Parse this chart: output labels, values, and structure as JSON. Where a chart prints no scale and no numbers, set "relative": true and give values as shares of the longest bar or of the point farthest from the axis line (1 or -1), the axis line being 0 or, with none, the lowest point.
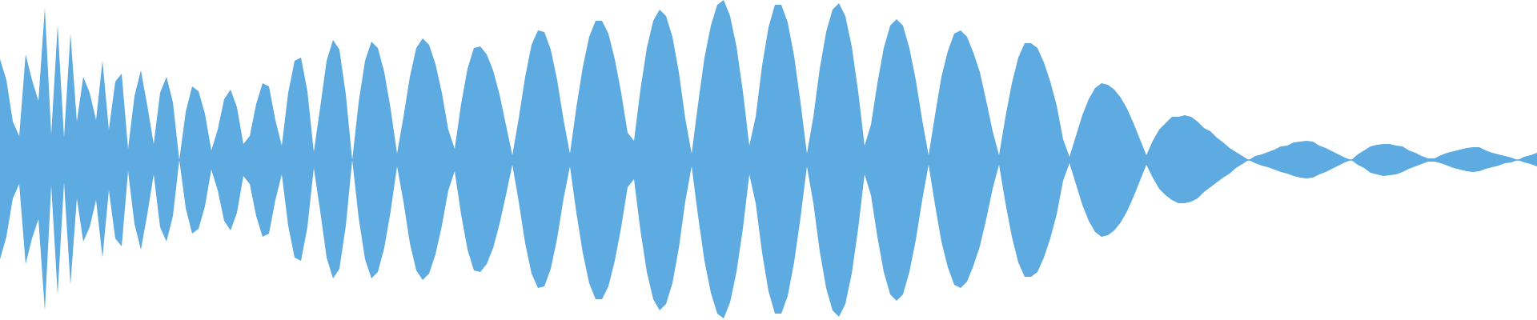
{
  "chart_data": {
    "type": "area",
    "relative": true,
    "ref_lines": [
      {
        "axis": "y",
        "value": 0,
        "color": "#5dabe0"
      }
    ],
    "categories": [
      null,
      null,
      null,
      null,
      null,
      null,
      null,
      null,
      null,
      null,
      null,
      null,
      null,
      null,
      null,
      null,
      null,
      null,
      null,
      null,
      null,
      null,
      null,
      null,
      null,
      null,
      null,
      null,
      null,
      null,
      null,
      null,
      null,
      null,
      null,
      null,
      null,
      null,
      null,
      null,
      null,
      null,
      null,
      null,
      null,
      null,
      null,
      null,
      null,
      null,
      null,
      null,
      null,
      null,
      null,
      null,
      null,
      null,
      null,
      null,
      null,
      null,
      null,
      null,
      null,
      null,
      null,
      null,
      null,
      null,
      null,
      null,
      null,
      null,
      null,
      null,
      null,
      null,
      null,
      null,
      null,
      null,
      null,
      null,
      null,
      null,
      null,
      null,
      null,
      null,
      null,
      null,
      null,
      null,
      null,
      null,
      null,
      null,
      null,
      null,
      null,
      null,
      null,
      null,
      null,
      null,
      null,
      null,
      null,
      null,
      null,
      null,
      null,
      null,
      null,
      null,
      null,
      null,
      null,
      null,
      null,
      null,
      null,
      null,
      null,
      null,
      null,
      null,
      null,
      null,
      null,
      null,
      null,
      null,
      null,
      null,
      null,
      null,
      null,
      null,
      null,
      null,
      null,
      null,
      null,
      null,
      null,
      null,
      null,
      null,
      null,
      null,
      null,
      null,
      null,
      null,
      null,
      null,
      null,
      null,
      null,
      null,
      null,
      null,
      null,
      null,
      null,
      null,
      null,
      null,
      null,
      null,
      null,
      null,
      null,
      null,
      null,
      null,
      null,
      null,
      null,
      null,
      null,
      null,
      null,
      null,
      null,
      null,
      null,
      null,
      null,
      null,
      null,
      null,
      null,
      null,
      null,
      null,
      null,
      null,
      null,
      null,
      null,
      null,
      null,
      null,
      null,
      null,
      null,
      null,
      null,
      null,
      null,
      null,
      null,
      null,
      null,
      null,
      null,
      null,
      null,
      null,
      null,
      null,
      null,
      null,
      null,
      null,
      null,
      null,
      null,
      null,
      null,
      null,
      null,
      null,
      null,
      null,
      null,
      null,
      null
    ],
    "series": [
      {
        "color": "#5dabe0",
        "values": [
          0.63,
          0.5,
          0.24,
          0.15,
          0.66,
          0.5,
          0.37,
          0.95,
          0.16,
          0.84,
          0.14,
          0.79,
          0.24,
          0.52,
          0.42,
          0.25,
          0.62,
          0.19,
          0.49,
          0.54,
          0.07,
          0.4,
          0.56,
          0.34,
          0.1,
          0.42,
          0.52,
          0.36,
          0.0,
          0.3,
          0.46,
          0.43,
          0.29,
          0.06,
          0.19,
          0.38,
          0.44,
          0.33,
          0.1,
          0.15,
          0.35,
          0.48,
          0.46,
          0.25,
          0.09,
          0.42,
          0.62,
          0.64,
          0.43,
          0.05,
          0.33,
          0.62,
          0.75,
          0.69,
          0.41,
          0.0,
          0.36,
          0.62,
          0.74,
          0.7,
          0.55,
          0.32,
          0.04,
          0.27,
          0.52,
          0.7,
          0.76,
          0.72,
          0.6,
          0.42,
          0.19,
          0.07,
          0.35,
          0.57,
          0.7,
          0.71,
          0.66,
          0.56,
          0.41,
          0.22,
          0.03,
          0.26,
          0.52,
          0.72,
          0.81,
          0.8,
          0.69,
          0.5,
          0.25,
          0.04,
          0.33,
          0.58,
          0.77,
          0.87,
          0.87,
          0.79,
          0.63,
          0.42,
          0.17,
          0.12,
          0.44,
          0.7,
          0.87,
          0.94,
          0.9,
          0.77,
          0.55,
          0.26,
          0.04,
          0.35,
          0.64,
          0.84,
          0.97,
          1.0,
          0.9,
          0.71,
          0.43,
          0.09,
          0.27,
          0.59,
          0.83,
          0.97,
          0.97,
          0.86,
          0.65,
          0.36,
          0.04,
          0.27,
          0.57,
          0.8,
          0.94,
          0.98,
          0.9,
          0.71,
          0.43,
          0.09,
          0.22,
          0.48,
          0.7,
          0.84,
          0.88,
          0.84,
          0.7,
          0.5,
          0.25,
          0.03,
          0.28,
          0.52,
          0.68,
          0.79,
          0.81,
          0.77,
          0.67,
          0.55,
          0.37,
          0.18,
          0.03,
          0.27,
          0.48,
          0.64,
          0.73,
          0.73,
          0.7,
          0.61,
          0.49,
          0.34,
          0.13,
          0.02,
          0.15,
          0.28,
          0.38,
          0.45,
          0.48,
          0.47,
          0.44,
          0.39,
          0.32,
          0.23,
          0.13,
          0.03,
          0.12,
          0.19,
          0.23,
          0.27,
          0.27,
          0.28,
          0.27,
          0.24,
          0.2,
          0.18,
          0.14,
          0.11,
          0.075,
          0.05,
          0.025,
          0.0,
          0.025,
          0.035,
          0.05,
          0.065,
          0.085,
          0.09,
          0.11,
          0.115,
          0.12,
          0.115,
          0.09,
          0.075,
          0.055,
          0.035,
          0.015,
          0.0,
          0.035,
          0.06,
          0.085,
          0.095,
          0.1,
          0.1,
          0.09,
          0.085,
          0.06,
          0.045,
          0.025,
          0.01,
          0.01,
          0.03,
          0.045,
          0.055,
          0.065,
          0.075,
          0.08,
          0.08,
          0.06,
          0.045,
          0.035,
          0.025,
          0.015,
          0.0,
          0.02,
          0.03,
          0.045
        ]
      },
      {
        "color": "#5dabe0",
        "values": [
          -0.62,
          -0.48,
          -0.24,
          -0.15,
          -0.65,
          -0.49,
          -0.37,
          -0.94,
          -0.16,
          -0.84,
          -0.14,
          -0.78,
          -0.24,
          -0.51,
          -0.42,
          -0.25,
          -0.61,
          -0.19,
          -0.49,
          -0.54,
          -0.07,
          -0.4,
          -0.56,
          -0.34,
          -0.09,
          -0.42,
          -0.51,
          -0.35,
          0.0,
          -0.3,
          -0.46,
          -0.43,
          -0.29,
          -0.06,
          -0.19,
          -0.38,
          -0.44,
          -0.33,
          -0.1,
          -0.15,
          -0.35,
          -0.48,
          -0.46,
          -0.25,
          -0.09,
          -0.41,
          -0.61,
          -0.63,
          -0.42,
          -0.05,
          -0.32,
          -0.61,
          -0.74,
          -0.68,
          -0.41,
          0.0,
          -0.36,
          -0.62,
          -0.74,
          -0.7,
          -0.55,
          -0.32,
          -0.04,
          -0.26,
          -0.52,
          -0.69,
          -0.75,
          -0.71,
          -0.59,
          -0.41,
          -0.19,
          -0.07,
          -0.34,
          -0.56,
          -0.69,
          -0.7,
          -0.65,
          -0.55,
          -0.4,
          -0.22,
          -0.03,
          -0.26,
          -0.52,
          -0.71,
          -0.8,
          -0.79,
          -0.68,
          -0.49,
          -0.24,
          -0.04,
          -0.33,
          -0.58,
          -0.77,
          -0.87,
          -0.87,
          -0.79,
          -0.63,
          -0.42,
          -0.17,
          -0.12,
          -0.44,
          -0.7,
          -0.87,
          -0.94,
          -0.9,
          -0.77,
          -0.55,
          -0.26,
          -0.04,
          -0.35,
          -0.63,
          -0.83,
          -0.96,
          -0.99,
          -0.89,
          -0.7,
          -0.43,
          -0.09,
          -0.27,
          -0.58,
          -0.82,
          -0.96,
          -0.96,
          -0.85,
          -0.64,
          -0.36,
          -0.04,
          -0.27,
          -0.57,
          -0.8,
          -0.94,
          -0.98,
          -0.9,
          -0.71,
          -0.43,
          -0.09,
          -0.22,
          -0.48,
          -0.7,
          -0.84,
          -0.88,
          -0.84,
          -0.7,
          -0.5,
          -0.25,
          -0.03,
          -0.28,
          -0.51,
          -0.67,
          -0.78,
          -0.8,
          -0.76,
          -0.66,
          -0.54,
          -0.37,
          -0.18,
          -0.03,
          -0.27,
          -0.48,
          -0.64,
          -0.73,
          -0.73,
          -0.7,
          -0.61,
          -0.49,
          -0.34,
          -0.13,
          -0.02,
          -0.15,
          -0.28,
          -0.38,
          -0.45,
          -0.48,
          -0.47,
          -0.44,
          -0.39,
          -0.32,
          -0.23,
          -0.13,
          -0.03,
          -0.11,
          -0.18,
          -0.22,
          -0.25,
          -0.27,
          -0.27,
          -0.26,
          -0.24,
          -0.2,
          -0.17,
          -0.14,
          -0.11,
          -0.085,
          -0.05,
          -0.025,
          0.0,
          -0.02,
          -0.035,
          -0.045,
          -0.06,
          -0.075,
          -0.085,
          -0.1,
          -0.11,
          -0.115,
          -0.11,
          -0.09,
          -0.075,
          -0.055,
          -0.035,
          -0.015,
          0.0,
          -0.03,
          -0.05,
          -0.08,
          -0.09,
          -0.1,
          -0.095,
          -0.09,
          -0.075,
          -0.055,
          -0.04,
          -0.025,
          -0.01,
          -0.01,
          -0.02,
          -0.035,
          -0.05,
          -0.06,
          -0.07,
          -0.075,
          -0.07,
          -0.055,
          -0.045,
          -0.035,
          -0.02,
          -0.015,
          0.0,
          -0.015,
          -0.025,
          -0.04
        ]
      }
    ]
  }
}
